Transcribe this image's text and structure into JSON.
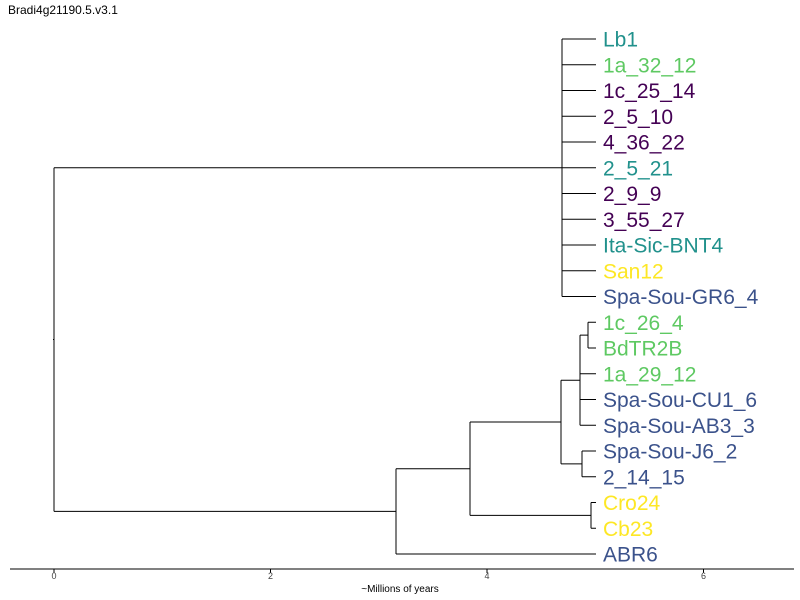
{
  "title": "Bradi4g21190.5.v3.1",
  "axis": {
    "label": "~Millions of years",
    "ticks": [
      "0",
      "2",
      "4",
      "6"
    ]
  },
  "colors": {
    "teal": "#21918c",
    "lightgreen": "#5ec962",
    "purple": "#440154",
    "yellow": "#fde725",
    "blue": "#3b528b",
    "branch": "#000000"
  },
  "leaves": [
    {
      "label": "Lb1",
      "color": "teal"
    },
    {
      "label": "1a_32_12",
      "color": "lightgreen"
    },
    {
      "label": "1c_25_14",
      "color": "purple"
    },
    {
      "label": "2_5_10",
      "color": "purple"
    },
    {
      "label": "4_36_22",
      "color": "purple"
    },
    {
      "label": "2_5_21",
      "color": "teal"
    },
    {
      "label": "2_9_9",
      "color": "purple"
    },
    {
      "label": "3_55_27",
      "color": "purple"
    },
    {
      "label": "Ita-Sic-BNT4",
      "color": "teal"
    },
    {
      "label": "San12",
      "color": "yellow"
    },
    {
      "label": "Spa-Sou-GR6_4",
      "color": "blue"
    },
    {
      "label": "1c_26_4",
      "color": "lightgreen"
    },
    {
      "label": "BdTR2B",
      "color": "lightgreen"
    },
    {
      "label": "1a_29_12",
      "color": "lightgreen"
    },
    {
      "label": "Spa-Sou-CU1_6",
      "color": "blue"
    },
    {
      "label": "Spa-Sou-AB3_3",
      "color": "blue"
    },
    {
      "label": "Spa-Sou-J6_2",
      "color": "blue"
    },
    {
      "label": "2_14_15",
      "color": "blue"
    },
    {
      "label": "Cro24",
      "color": "yellow"
    },
    {
      "label": "Cb23",
      "color": "yellow"
    },
    {
      "label": "ABR6",
      "color": "blue"
    }
  ]
}
